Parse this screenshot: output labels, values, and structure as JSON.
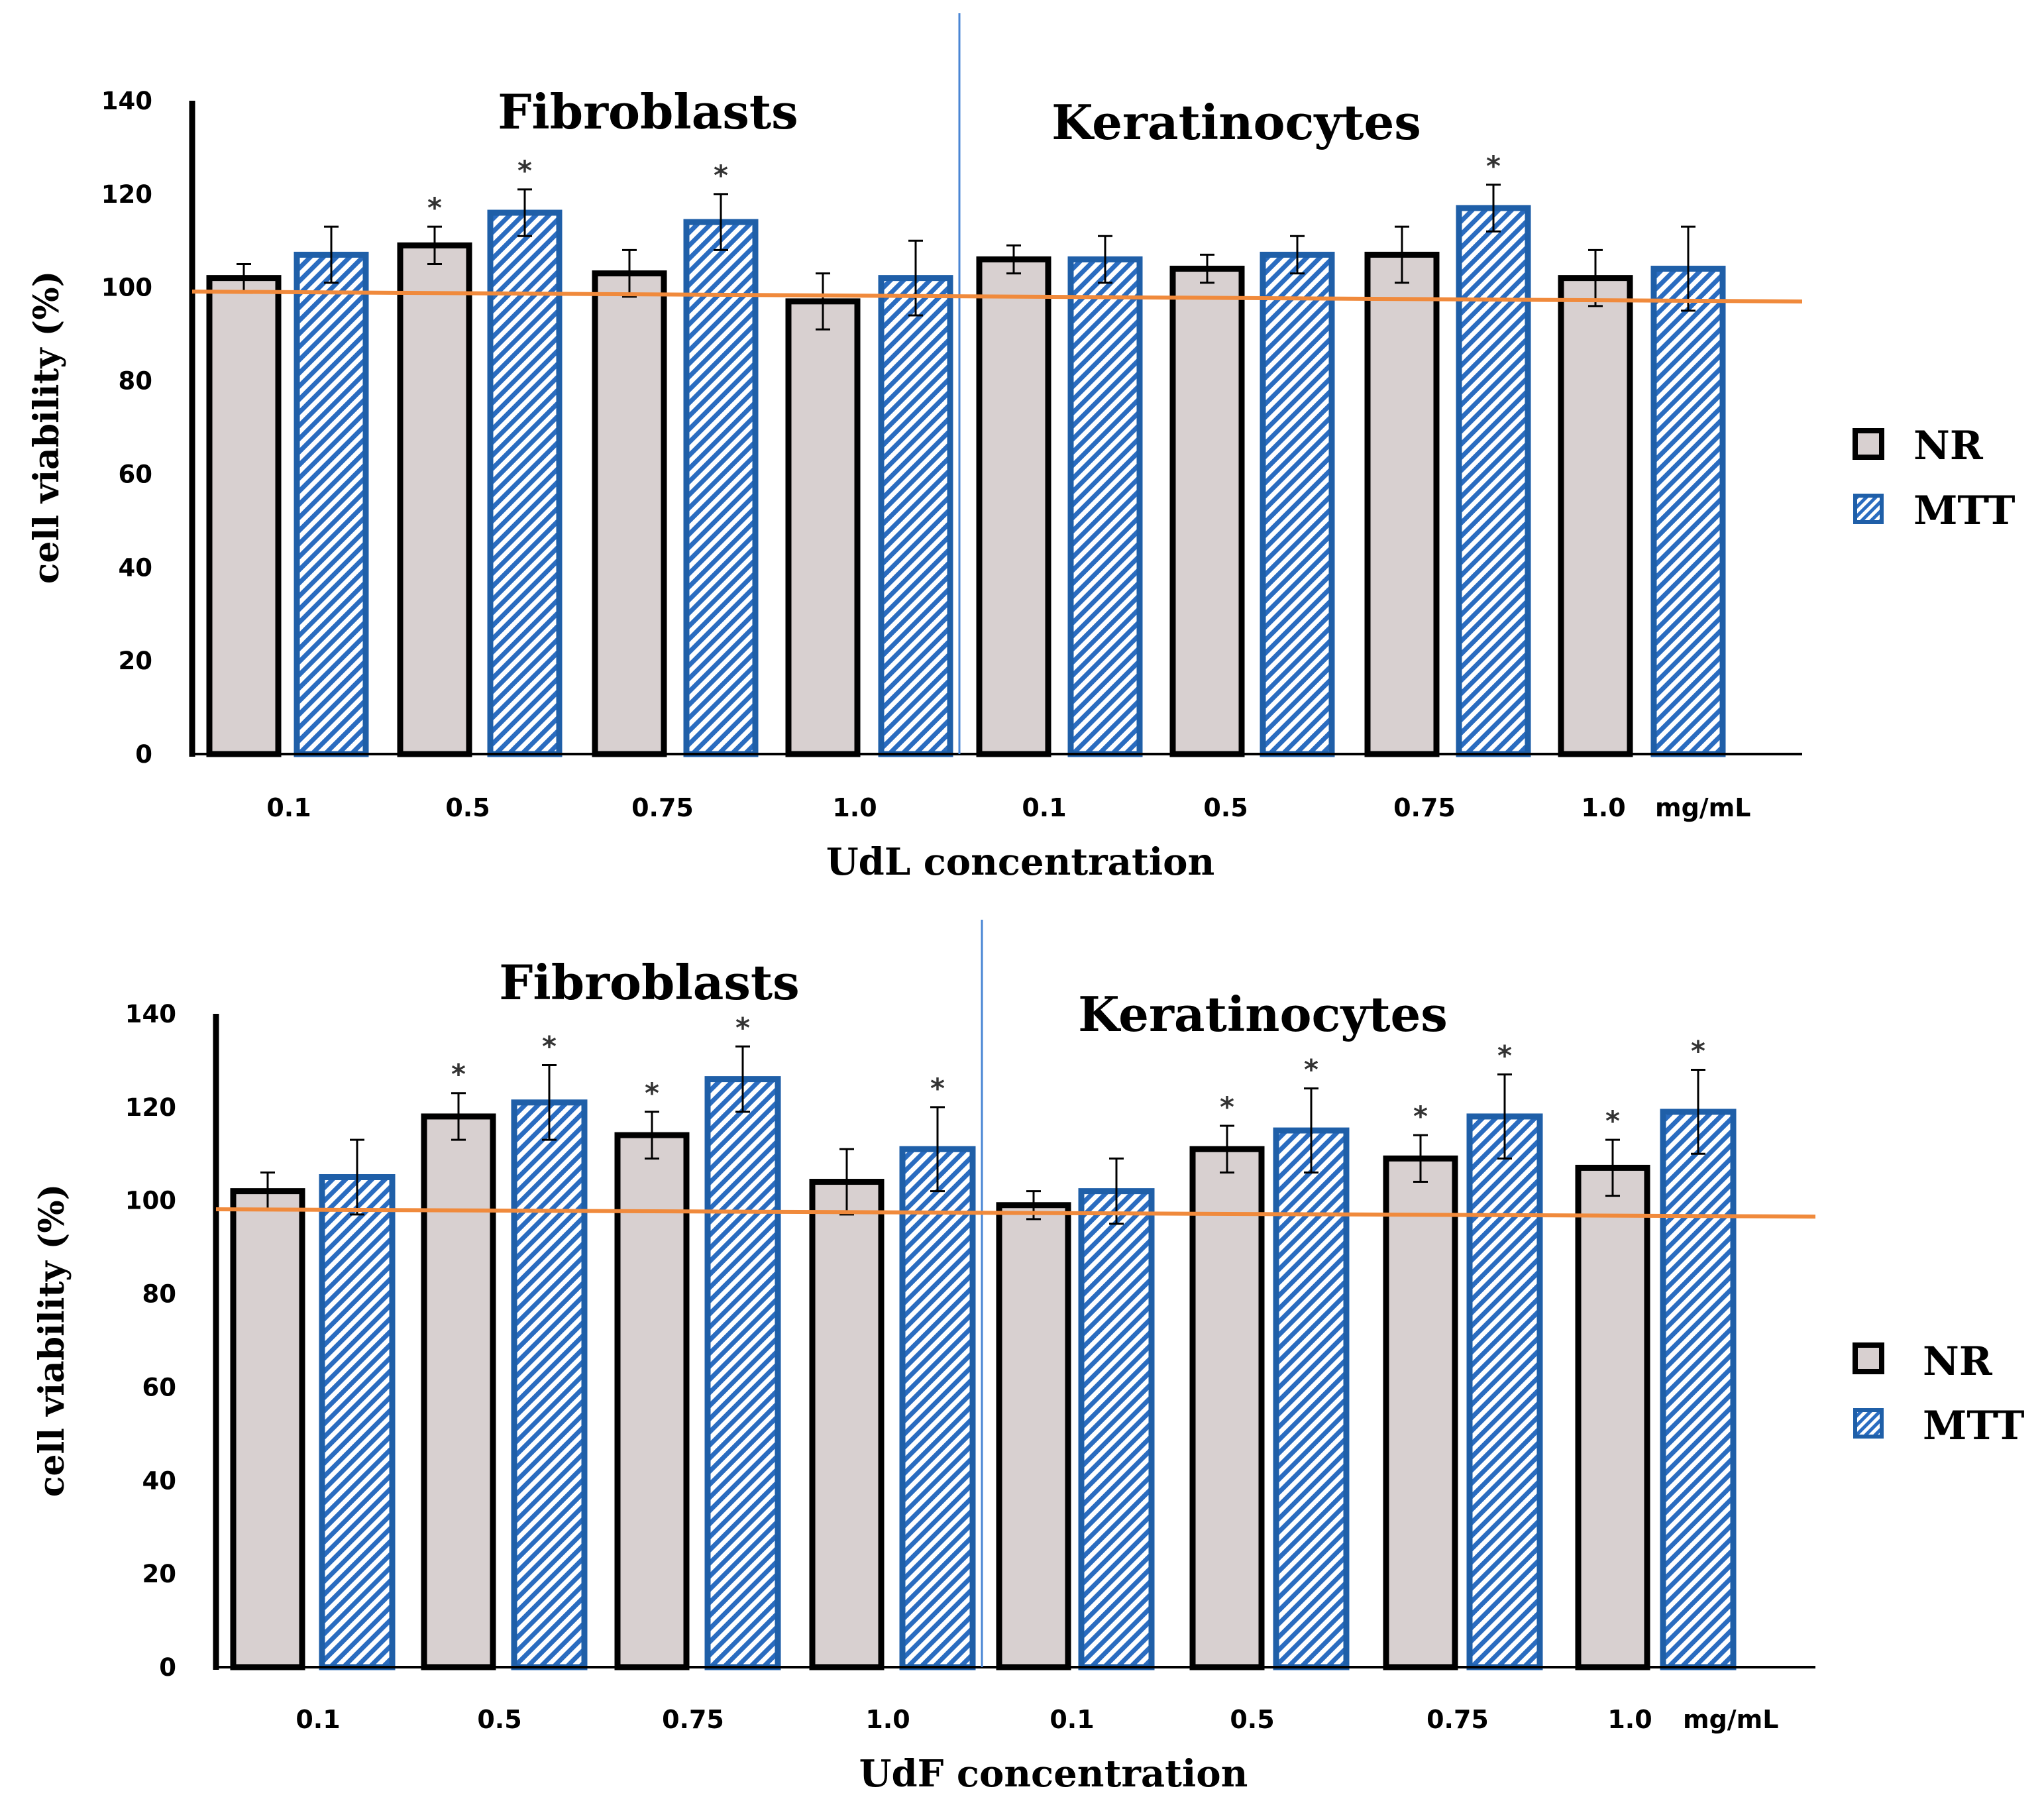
{
  "colors": {
    "nr_fill": "#d8d0d0",
    "nr_stroke": "#000000",
    "mtt_stroke": "#1f5fa8",
    "mtt_hatch": "#2a6cc0",
    "reference_line": "#f08a3c",
    "divider": "#4a86d4"
  },
  "legend": {
    "nr": "NR",
    "mtt": "MTT"
  },
  "chart_data": [
    {
      "type": "bar",
      "title": "",
      "ylabel": "cell viability (%)",
      "xlabel": "UdL concentration",
      "unit_label": "mg/mL",
      "ylim": [
        0,
        140
      ],
      "yticks": [
        "0",
        "20",
        "40",
        "60",
        "80",
        "100",
        "120",
        "140"
      ],
      "reference_line": 98,
      "groups": [
        {
          "name": "Fibroblasts",
          "categories": [
            "0.1",
            "0.5",
            "0.75",
            "1.0"
          ]
        },
        {
          "name": "Keratinocytes",
          "categories": [
            "0.1",
            "0.5",
            "0.75",
            "1.0"
          ]
        }
      ],
      "series": [
        {
          "name": "NR",
          "values": [
            102,
            109,
            103,
            97,
            106,
            104,
            107,
            102
          ],
          "errors": [
            3,
            4,
            5,
            6,
            3,
            3,
            6,
            6
          ],
          "significant": [
            false,
            true,
            false,
            false,
            false,
            false,
            false,
            false
          ]
        },
        {
          "name": "MTT",
          "values": [
            107,
            116,
            114,
            102,
            106,
            107,
            117,
            104
          ],
          "errors": [
            6,
            5,
            6,
            8,
            5,
            4,
            5,
            9
          ],
          "significant": [
            false,
            true,
            true,
            false,
            false,
            false,
            true,
            false
          ]
        }
      ],
      "star": "*"
    },
    {
      "type": "bar",
      "title": "",
      "ylabel": "cell viability (%)",
      "xlabel": "UdF concentration",
      "unit_label": "mg/mL",
      "ylim": [
        0,
        140
      ],
      "yticks": [
        "0",
        "20",
        "40",
        "60",
        "80",
        "100",
        "120",
        "140"
      ],
      "reference_line": 98,
      "groups": [
        {
          "name": "Fibroblasts",
          "categories": [
            "0.1",
            "0.5",
            "0.75",
            "1.0"
          ]
        },
        {
          "name": "Keratinocytes",
          "categories": [
            "0.1",
            "0.5",
            "0.75",
            "1.0"
          ]
        }
      ],
      "series": [
        {
          "name": "NR",
          "values": [
            102,
            118,
            114,
            104,
            99,
            111,
            109,
            107
          ],
          "errors": [
            4,
            5,
            5,
            7,
            3,
            5,
            5,
            6
          ],
          "significant": [
            false,
            true,
            true,
            false,
            false,
            true,
            true,
            true
          ]
        },
        {
          "name": "MTT",
          "values": [
            105,
            121,
            126,
            111,
            102,
            115,
            118,
            119
          ],
          "errors": [
            8,
            8,
            7,
            9,
            7,
            9,
            9,
            9
          ],
          "significant": [
            false,
            true,
            true,
            true,
            false,
            true,
            true,
            true
          ]
        }
      ],
      "star": "*"
    }
  ]
}
